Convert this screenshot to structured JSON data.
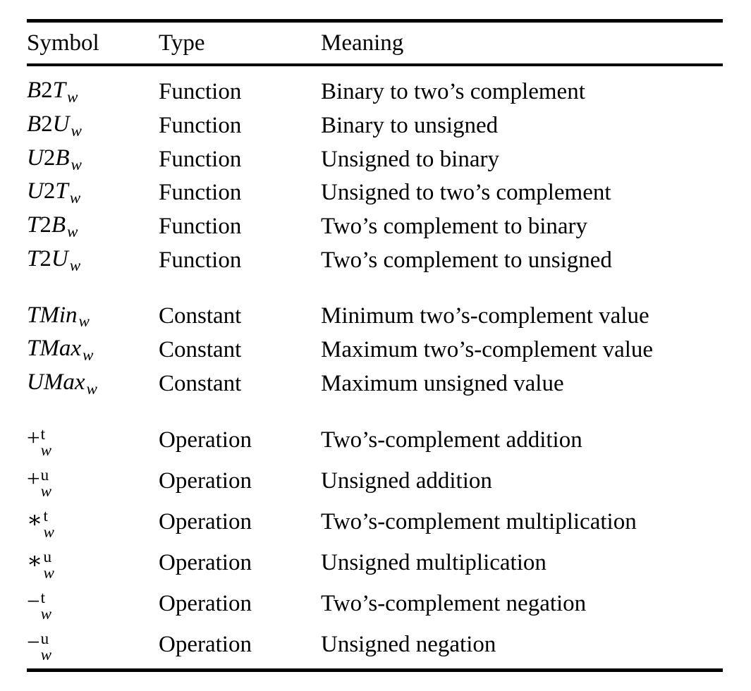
{
  "page": {
    "background_color": "#ffffff",
    "text_color": "#000000"
  },
  "table": {
    "columns": [
      {
        "label": "Symbol"
      },
      {
        "label": "Type"
      },
      {
        "label": "Meaning"
      }
    ],
    "groups": [
      {
        "name": "functions",
        "rows": [
          {
            "symbol": {
              "base": "B2T",
              "sub": "w"
            },
            "type": "Function",
            "meaning": "Binary to two’s complement"
          },
          {
            "symbol": {
              "base": "B2U",
              "sub": "w"
            },
            "type": "Function",
            "meaning": "Binary to unsigned"
          },
          {
            "symbol": {
              "base": "U2B",
              "sub": "w"
            },
            "type": "Function",
            "meaning": "Unsigned to binary"
          },
          {
            "symbol": {
              "base": "U2T",
              "sub": "w"
            },
            "type": "Function",
            "meaning": "Unsigned to two’s complement"
          },
          {
            "symbol": {
              "base": "T2B",
              "sub": "w"
            },
            "type": "Function",
            "meaning": "Two’s complement to binary"
          },
          {
            "symbol": {
              "base": "T2U",
              "sub": "w"
            },
            "type": "Function",
            "meaning": "Two’s complement to unsigned"
          }
        ]
      },
      {
        "name": "constants",
        "rows": [
          {
            "symbol": {
              "base": "TMin",
              "sub": "w"
            },
            "type": "Constant",
            "meaning": "Minimum two’s-complement value"
          },
          {
            "symbol": {
              "base": "TMax",
              "sub": "w"
            },
            "type": "Constant",
            "meaning": "Maximum two’s-complement value"
          },
          {
            "symbol": {
              "base": "UMax",
              "sub": "w"
            },
            "type": "Constant",
            "meaning": "Maximum unsigned value"
          }
        ]
      },
      {
        "name": "operations",
        "rows": [
          {
            "symbol": {
              "op": "+",
              "sup": "t",
              "sub": "w"
            },
            "type": "Operation",
            "meaning": "Two’s-complement addition"
          },
          {
            "symbol": {
              "op": "+",
              "sup": "u",
              "sub": "w"
            },
            "type": "Operation",
            "meaning": "Unsigned addition"
          },
          {
            "symbol": {
              "op": "∗",
              "sup": "t",
              "sub": "w"
            },
            "type": "Operation",
            "meaning": "Two’s-complement multiplication"
          },
          {
            "symbol": {
              "op": "∗",
              "sup": "u",
              "sub": "w"
            },
            "type": "Operation",
            "meaning": "Unsigned multiplication"
          },
          {
            "symbol": {
              "op": "−",
              "sup": "t",
              "sub": "w"
            },
            "type": "Operation",
            "meaning": "Two’s-complement negation"
          },
          {
            "symbol": {
              "op": "−",
              "sup": "u",
              "sub": "w"
            },
            "type": "Operation",
            "meaning": "Unsigned negation"
          }
        ]
      }
    ]
  }
}
